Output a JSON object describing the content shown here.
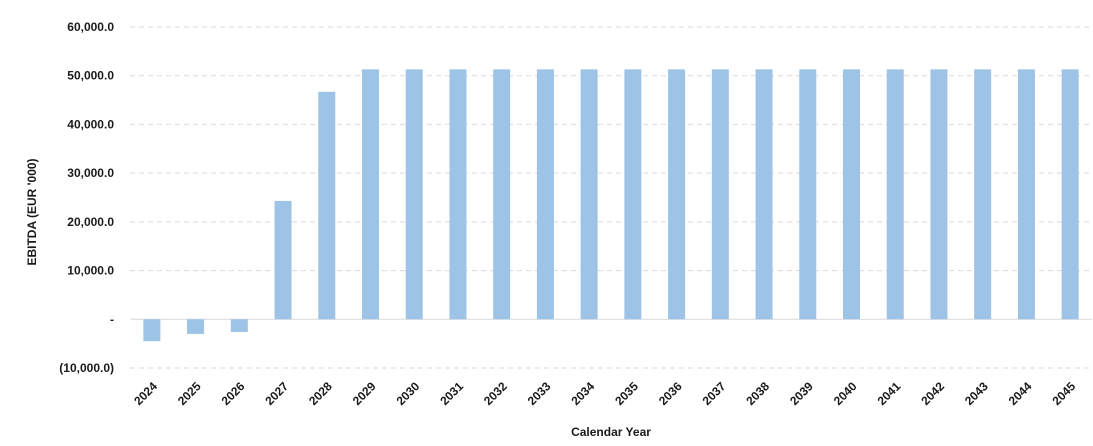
{
  "chart_data": {
    "type": "bar",
    "title": "",
    "xlabel": "Calendar Year",
    "ylabel": "EBITDA  (EUR '000)",
    "categories": [
      "2024",
      "2025",
      "2026",
      "2027",
      "2028",
      "2029",
      "2030",
      "2031",
      "2032",
      "2033",
      "2034",
      "2035",
      "2036",
      "2037",
      "2038",
      "2039",
      "2040",
      "2041",
      "2042",
      "2043",
      "2044",
      "2045"
    ],
    "values": [
      -4500,
      -3000,
      -2600,
      24300,
      46700,
      51300,
      51300,
      51300,
      51300,
      51300,
      51300,
      51300,
      51300,
      51300,
      51300,
      51300,
      51300,
      51300,
      51300,
      51300,
      51300,
      51300
    ],
    "ylim": [
      -10000,
      60000
    ],
    "yticks": [
      {
        "value": 60000,
        "label": "60,000.0"
      },
      {
        "value": 50000,
        "label": "50,000.0"
      },
      {
        "value": 40000,
        "label": "40,000.0"
      },
      {
        "value": 30000,
        "label": "30,000.0"
      },
      {
        "value": 20000,
        "label": "20,000.0"
      },
      {
        "value": 10000,
        "label": "10,000.0"
      },
      {
        "value": 0,
        "label": "-"
      },
      {
        "value": -10000,
        "label": "(10,000.0)"
      }
    ],
    "grid": true,
    "bar_color": "#9dc3e6"
  }
}
